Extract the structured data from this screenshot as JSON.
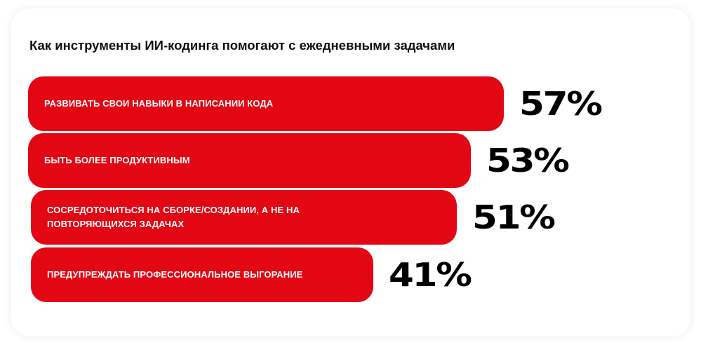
{
  "colors": {
    "bar": "#e30613",
    "value_text": "#000000",
    "title_text": "#111111"
  },
  "chart_data": {
    "type": "bar",
    "orientation": "horizontal",
    "title": "Как инструменты ИИ-кодинга помогают с ежедневными задачами",
    "categories": [
      "Развивать свои навыки в написании кода",
      "Быть более продуктивным",
      "Сосредоточиться на сборке/создании, а не на повторяющихся задачах",
      "Предупреждать профессиональное выгорание"
    ],
    "values": [
      57,
      53,
      51,
      41
    ],
    "value_labels": [
      "57%",
      "53%",
      "51%",
      "41%"
    ],
    "unit": "%",
    "xlim": [
      0,
      100
    ],
    "grid": false,
    "legend": "none"
  }
}
